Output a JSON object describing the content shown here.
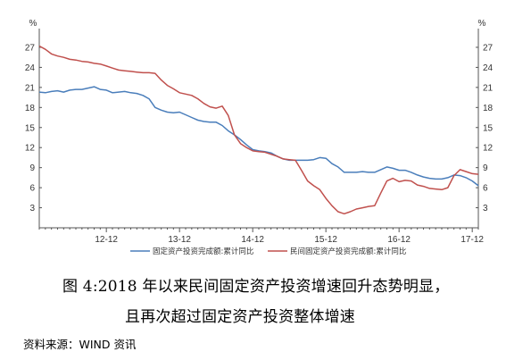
{
  "chart_data": {
    "type": "line",
    "ylim": [
      0,
      29
    ],
    "yticks": [
      3,
      6,
      9,
      12,
      15,
      18,
      21,
      24,
      27
    ],
    "yunit_left": "%",
    "yunit_right": "%",
    "grid": false,
    "legend_placement": "bottom",
    "xlabels": [
      {
        "label": "12-12",
        "t": 11
      },
      {
        "label": "13-12",
        "t": 23
      },
      {
        "label": "14-12",
        "t": 35
      },
      {
        "label": "15-12",
        "t": 47
      },
      {
        "label": "16-12",
        "t": 59
      },
      {
        "label": "17-12",
        "t": 71
      }
    ],
    "series": [
      {
        "name": "固定资产投资完成额:累计同比",
        "color": "#4a7ebb",
        "points": [
          [
            0,
            20.3
          ],
          [
            1,
            20.2
          ],
          [
            2,
            20.4
          ],
          [
            3,
            20.5
          ],
          [
            4,
            20.3
          ],
          [
            5,
            20.6
          ],
          [
            6,
            20.7
          ],
          [
            7,
            20.7
          ],
          [
            8,
            20.9
          ],
          [
            9,
            21.1
          ],
          [
            10,
            20.7
          ],
          [
            11,
            20.6
          ],
          [
            12,
            20.2
          ],
          [
            13,
            20.3
          ],
          [
            14,
            20.4
          ],
          [
            15,
            20.2
          ],
          [
            16,
            20.1
          ],
          [
            17,
            19.8
          ],
          [
            18,
            19.3
          ],
          [
            19,
            18.0
          ],
          [
            20,
            17.6
          ],
          [
            21,
            17.3
          ],
          [
            22,
            17.2
          ],
          [
            23,
            17.3
          ],
          [
            24,
            16.9
          ],
          [
            25,
            16.5
          ],
          [
            26,
            16.1
          ],
          [
            27,
            15.9
          ],
          [
            28,
            15.8
          ],
          [
            29,
            15.8
          ],
          [
            30,
            15.3
          ],
          [
            31,
            14.5
          ],
          [
            32,
            13.9
          ],
          [
            33,
            13.2
          ],
          [
            34,
            12.4
          ],
          [
            35,
            11.7
          ],
          [
            36,
            11.5
          ],
          [
            37,
            11.4
          ],
          [
            38,
            11.2
          ],
          [
            39,
            10.7
          ],
          [
            40,
            10.3
          ],
          [
            41,
            10.1
          ],
          [
            42,
            10.1
          ],
          [
            43,
            10.1
          ],
          [
            44,
            10.1
          ],
          [
            45,
            10.2
          ],
          [
            46,
            10.5
          ],
          [
            47,
            10.4
          ],
          [
            48,
            9.6
          ],
          [
            49,
            9.1
          ],
          [
            50,
            8.3
          ],
          [
            51,
            8.3
          ],
          [
            52,
            8.3
          ],
          [
            53,
            8.4
          ],
          [
            54,
            8.3
          ],
          [
            55,
            8.3
          ],
          [
            56,
            8.7
          ],
          [
            57,
            9.1
          ],
          [
            58,
            8.9
          ],
          [
            59,
            8.6
          ],
          [
            60,
            8.6
          ],
          [
            61,
            8.3
          ],
          [
            62,
            7.9
          ],
          [
            63,
            7.6
          ],
          [
            64,
            7.4
          ],
          [
            65,
            7.3
          ],
          [
            66,
            7.3
          ],
          [
            67,
            7.5
          ],
          [
            68,
            7.9
          ],
          [
            69,
            7.8
          ],
          [
            70,
            7.5
          ],
          [
            71,
            7.0
          ],
          [
            72,
            6.3
          ]
        ]
      },
      {
        "name": "民间固定资产投资完成额:累计同比",
        "color": "#c0504d",
        "points": [
          [
            0,
            27.2
          ],
          [
            1,
            26.7
          ],
          [
            2,
            26.0
          ],
          [
            3,
            25.7
          ],
          [
            4,
            25.5
          ],
          [
            5,
            25.2
          ],
          [
            6,
            25.1
          ],
          [
            7,
            24.9
          ],
          [
            8,
            24.8
          ],
          [
            9,
            24.6
          ],
          [
            10,
            24.5
          ],
          [
            11,
            24.2
          ],
          [
            12,
            23.9
          ],
          [
            13,
            23.6
          ],
          [
            14,
            23.5
          ],
          [
            15,
            23.4
          ],
          [
            16,
            23.3
          ],
          [
            17,
            23.2
          ],
          [
            18,
            23.2
          ],
          [
            19,
            23.1
          ],
          [
            20,
            22.1
          ],
          [
            21,
            21.3
          ],
          [
            22,
            20.8
          ],
          [
            23,
            20.2
          ],
          [
            24,
            20.0
          ],
          [
            25,
            19.8
          ],
          [
            26,
            19.3
          ],
          [
            27,
            18.6
          ],
          [
            28,
            18.1
          ],
          [
            29,
            17.9
          ],
          [
            30,
            18.2
          ],
          [
            31,
            16.8
          ],
          [
            32,
            13.9
          ],
          [
            33,
            12.6
          ],
          [
            34,
            12.0
          ],
          [
            35,
            11.5
          ],
          [
            36,
            11.4
          ],
          [
            37,
            11.3
          ],
          [
            38,
            11.0
          ],
          [
            39,
            10.7
          ],
          [
            40,
            10.3
          ],
          [
            41,
            10.2
          ],
          [
            42,
            10.1
          ],
          [
            43,
            8.6
          ],
          [
            44,
            7.0
          ],
          [
            45,
            6.3
          ],
          [
            46,
            5.7
          ],
          [
            47,
            4.4
          ],
          [
            48,
            3.3
          ],
          [
            49,
            2.4
          ],
          [
            50,
            2.1
          ],
          [
            51,
            2.4
          ],
          [
            52,
            2.8
          ],
          [
            53,
            3.0
          ],
          [
            54,
            3.2
          ],
          [
            55,
            3.3
          ],
          [
            56,
            5.2
          ],
          [
            57,
            7.0
          ],
          [
            58,
            7.4
          ],
          [
            59,
            6.9
          ],
          [
            60,
            7.1
          ],
          [
            61,
            7.0
          ],
          [
            62,
            6.4
          ],
          [
            63,
            6.2
          ],
          [
            64,
            5.9
          ],
          [
            65,
            5.8
          ],
          [
            66,
            5.7
          ],
          [
            67,
            6.0
          ],
          [
            68,
            7.8
          ],
          [
            69,
            8.7
          ],
          [
            70,
            8.4
          ],
          [
            71,
            8.1
          ],
          [
            72,
            8.0
          ]
        ]
      }
    ]
  },
  "caption": {
    "line1": "图 4:2018 年以来民间固定资产投资增速回升态势明显，",
    "line2": "且再次超过固定资产投资整体增速"
  },
  "source": "资料来源：WIND 资讯"
}
